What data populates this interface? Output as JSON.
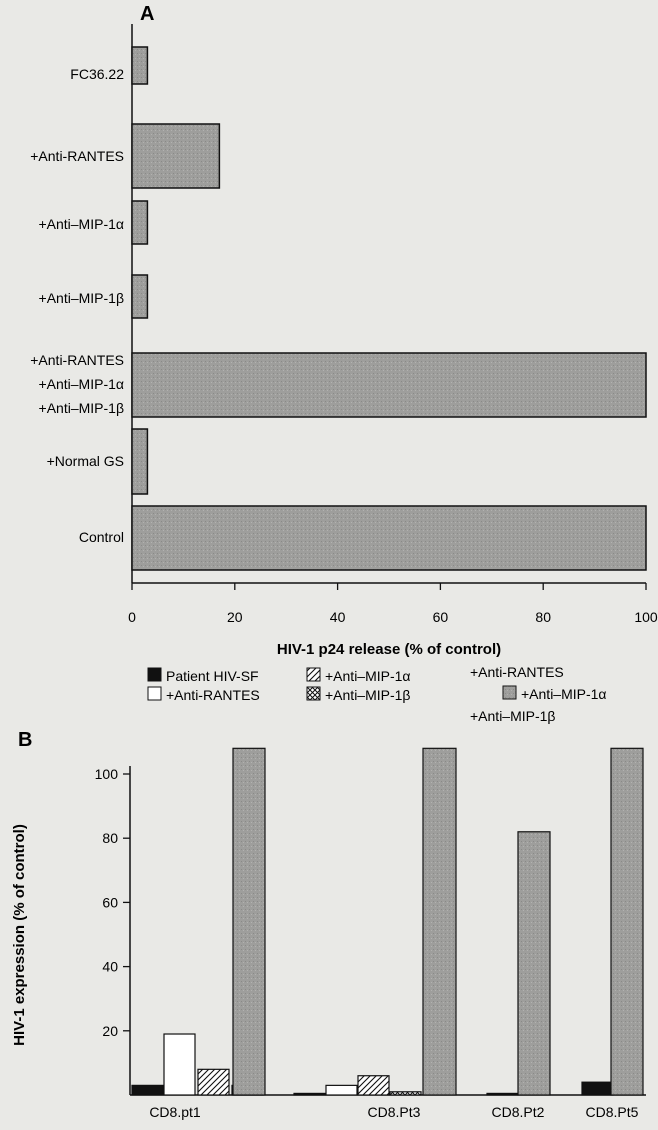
{
  "chart_data": [
    {
      "panel": "A",
      "type": "bar",
      "orientation": "horizontal",
      "categories": [
        [
          "FC36.22"
        ],
        [
          "+Anti-RANTES"
        ],
        [
          "+Anti–MIP-1α"
        ],
        [
          "+Anti–MIP-1β"
        ],
        [
          "+Anti-RANTES",
          "+Anti–MIP-1α",
          "+Anti–MIP-1β"
        ],
        [
          "+Normal GS"
        ],
        [
          "Control"
        ]
      ],
      "values": [
        3,
        17,
        3,
        3,
        100,
        3,
        100
      ],
      "xlabel": "HIV-1 p24 release (% of control)",
      "xlim": [
        0,
        100
      ],
      "xticks": [
        0,
        20,
        40,
        60,
        80,
        100
      ],
      "bar_color": "#a8a8a6",
      "grid": false
    },
    {
      "panel": "B",
      "type": "bar",
      "orientation": "vertical",
      "ylabel": "HIV-1 expression (% of control)",
      "ylim": [
        0,
        110
      ],
      "yticks": [
        20,
        40,
        60,
        80,
        100
      ],
      "categories": [
        "CD8.pt1",
        "CD8.Pt3",
        "CD8.Pt2",
        "CD8.Pt5"
      ],
      "series": [
        {
          "name": "Patient HIV-SF",
          "fill": "black",
          "values": [
            3,
            0.5,
            0.5,
            4
          ]
        },
        {
          "name": "+Anti-RANTES",
          "fill": "white",
          "values": [
            19,
            3,
            null,
            null
          ]
        },
        {
          "name": "+Anti–MIP-1α",
          "fill": "hatch",
          "values": [
            8,
            6,
            null,
            null
          ]
        },
        {
          "name": "+Anti–MIP-1β",
          "fill": "crosshatch",
          "values": [
            3,
            1,
            null,
            null
          ]
        },
        {
          "name": [
            "+Anti-RANTES",
            "+Anti–MIP-1α",
            "+Anti–MIP-1β"
          ],
          "fill": "gray",
          "values": [
            108,
            108,
            82,
            108
          ]
        }
      ],
      "grid": false
    }
  ]
}
